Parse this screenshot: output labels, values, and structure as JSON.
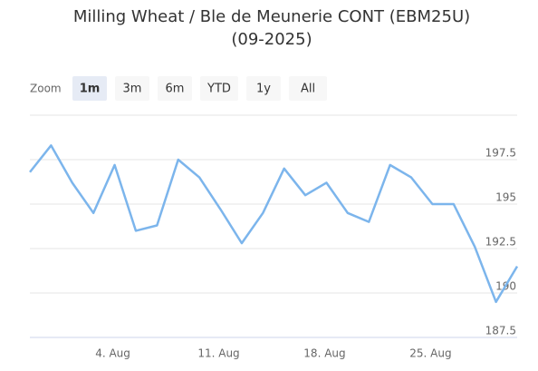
{
  "chart_data": {
    "type": "line",
    "title": "Milling Wheat / Ble de Meunerie CONT (EBM25U)",
    "subtitle": "(09-2025)",
    "range_selector": {
      "label": "Zoom",
      "buttons": [
        "1m",
        "3m",
        "6m",
        "YTD",
        "1y",
        "All"
      ],
      "selected": "1m"
    },
    "categories": [
      null,
      null,
      null,
      null,
      "4. Aug",
      null,
      null,
      null,
      null,
      "11. Aug",
      null,
      null,
      null,
      null,
      "18. Aug",
      null,
      null,
      null,
      null,
      "25. Aug",
      null,
      null,
      null,
      null
    ],
    "values": [
      196.8,
      198.3,
      196.2,
      194.5,
      197.2,
      193.5,
      193.8,
      197.5,
      196.5,
      194.7,
      192.8,
      194.5,
      197.0,
      195.5,
      196.2,
      194.5,
      194.0,
      197.2,
      196.5,
      195.0,
      195.0,
      192.6,
      189.5,
      191.5
    ],
    "color": "#7cb5ec",
    "ylim": [
      187.5,
      200
    ],
    "yticks": [
      187.5,
      190,
      192.5,
      195,
      197.5
    ],
    "grid": true
  }
}
